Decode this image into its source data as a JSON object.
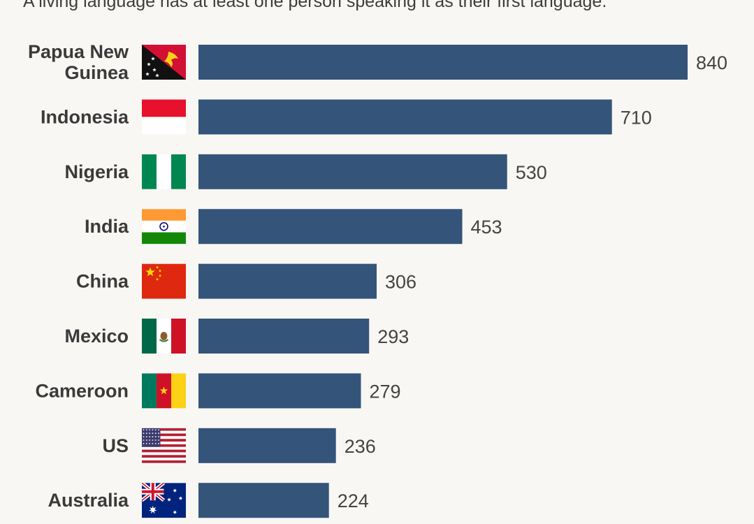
{
  "subtitle": "A living language has at least one person speaking it as their first language.",
  "colors": {
    "bar": "#34547a",
    "background": "#f8f7f4"
  },
  "chart_data": {
    "type": "bar",
    "orientation": "horizontal",
    "categories": [
      [
        "Papua New",
        "Guinea"
      ],
      [
        "Indonesia"
      ],
      [
        "Nigeria"
      ],
      [
        "India"
      ],
      [
        "China"
      ],
      [
        "Mexico"
      ],
      [
        "Cameroon"
      ],
      [
        "US"
      ],
      [
        "Australia"
      ]
    ],
    "flags": [
      "papua-new-guinea-flag",
      "indonesia-flag",
      "nigeria-flag",
      "india-flag",
      "china-flag",
      "mexico-flag",
      "cameroon-flag",
      "us-flag",
      "australia-flag"
    ],
    "values": [
      840,
      710,
      530,
      453,
      306,
      293,
      279,
      236,
      224
    ],
    "value_labels": [
      "840",
      "710",
      "530",
      "453",
      "306",
      "293",
      "279",
      "236",
      "224"
    ],
    "xlim": [
      0,
      840
    ],
    "grid": false,
    "legend": "none"
  }
}
